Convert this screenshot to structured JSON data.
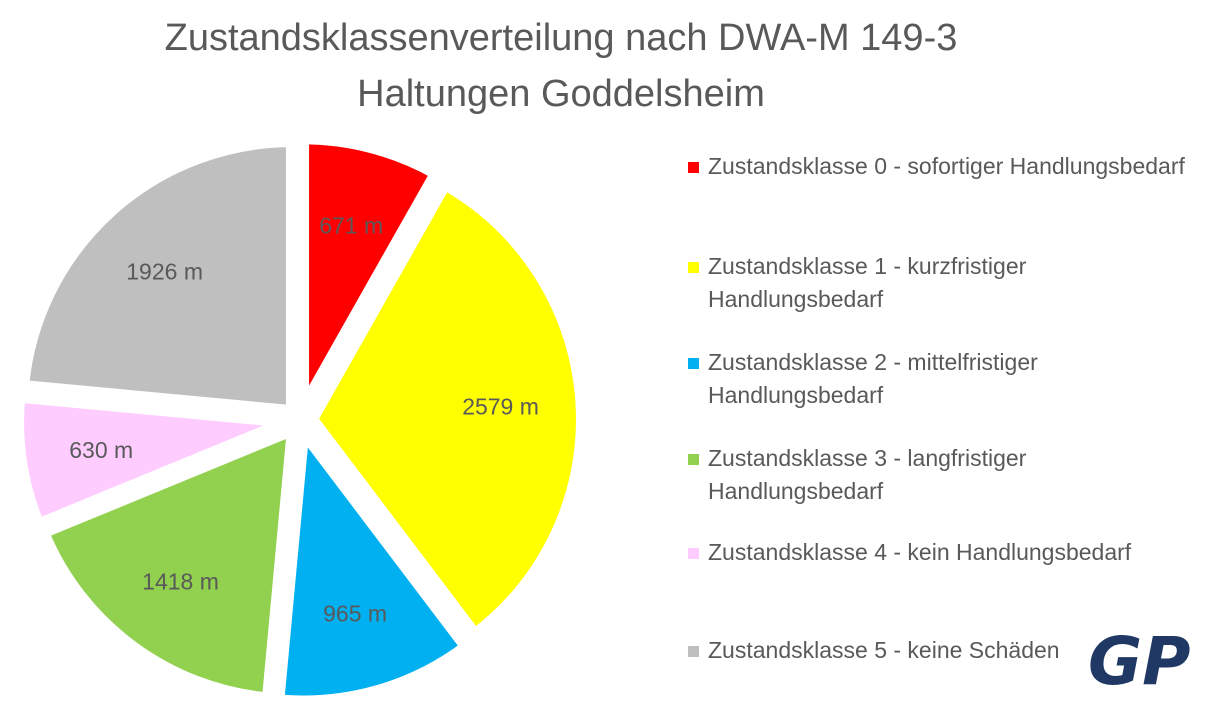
{
  "chart_data": {
    "type": "pie",
    "title": "Zustandsklassenverteilung nach DWA-M 149-3",
    "subtitle": "Haltungen Goddelsheim",
    "unit": "m",
    "legend_position": "right",
    "exploded": true,
    "slices": [
      {
        "label": "Zustandsklasse 0 - sofortiger Handlungsbedarf",
        "value": 671,
        "data_label": "671 m",
        "color": "#ff0000"
      },
      {
        "label": "Zustandsklasse 1 - kurzfristiger Handlungsbedarf",
        "value": 2579,
        "data_label": "2579 m",
        "color": "#ffff00"
      },
      {
        "label": "Zustandsklasse 2 - mittelfristiger Handlungsbedarf",
        "value": 965,
        "data_label": "965 m",
        "color": "#00b0f0"
      },
      {
        "label": "Zustandsklasse 3 - langfristiger Handlungsbedarf",
        "value": 1418,
        "data_label": "1418 m",
        "color": "#92d050"
      },
      {
        "label": "Zustandsklasse 4 - kein Handlungsbedarf",
        "value": 630,
        "data_label": "630 m",
        "color": "#ffccff"
      },
      {
        "label": "Zustandsklasse 5 - keine Schäden",
        "value": 1926,
        "data_label": "1926 m",
        "color": "#bfbfbf"
      }
    ]
  },
  "logo": {
    "text": "GP",
    "color": "#1f3864"
  }
}
